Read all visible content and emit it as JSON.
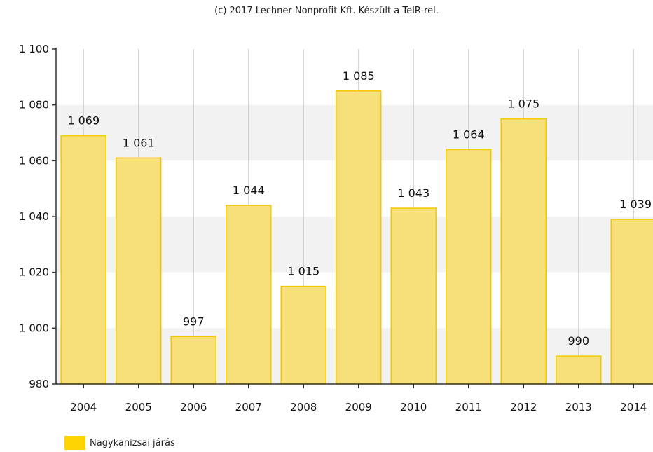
{
  "credit": "(c) 2017 Lechner Nonprofit Kft. Készült a TeIR-rel.",
  "colors": {
    "bar_fill": "#F7E07A",
    "bar_stroke": "#F2C800",
    "legend_swatch": "#FFD300",
    "band": "#F2F2F2",
    "grid": "#C8C8C8",
    "axis": "#333333"
  },
  "chart_data": {
    "type": "bar",
    "categories": [
      "2004",
      "2005",
      "2006",
      "2007",
      "2008",
      "2009",
      "2010",
      "2011",
      "2012",
      "2013",
      "2014"
    ],
    "series": [
      {
        "name": "Nagykanizsai járás",
        "values": [
          1069,
          1061,
          997,
          1044,
          1015,
          1085,
          1043,
          1064,
          1075,
          990,
          1039
        ],
        "labels": [
          "1 069",
          "1 061",
          "997",
          "1 044",
          "1 015",
          "1 085",
          "1 043",
          "1 064",
          "1 075",
          "990",
          "1 039"
        ]
      }
    ],
    "ylim": [
      980,
      1100
    ],
    "yticks": [
      980,
      1000,
      1020,
      1040,
      1060,
      1080,
      1100
    ],
    "ytick_labels": [
      "980",
      "1 000",
      "1 020",
      "1 040",
      "1 060",
      "1 080",
      "1 100"
    ],
    "grid": true,
    "legend": "bottom-left"
  }
}
